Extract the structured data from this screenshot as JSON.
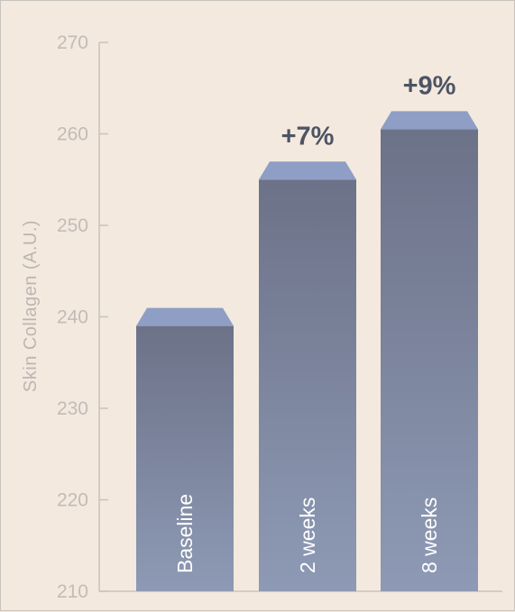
{
  "chart_data": {
    "type": "bar",
    "title": "",
    "xlabel": "",
    "ylabel": "Skin Collagen (A.U.)",
    "ylim": [
      210,
      270
    ],
    "yticks": [
      210,
      220,
      230,
      240,
      250,
      260,
      270
    ],
    "categories": [
      "Baseline",
      "2 weeks",
      "8 weeks"
    ],
    "values": [
      239,
      255,
      260.5
    ],
    "annotations": [
      "",
      "+7%",
      "+9%"
    ],
    "colors": {
      "bar_top": "#6c7288",
      "bar_bottom": "#8e9ab5",
      "bar_cap": "#8e9ec4",
      "axis": "#c9c2bb",
      "tick_text": "#c3bcb6",
      "annotation_text": "#4d5463",
      "background": "#f3e9df"
    },
    "grid": false,
    "legend": "none"
  }
}
